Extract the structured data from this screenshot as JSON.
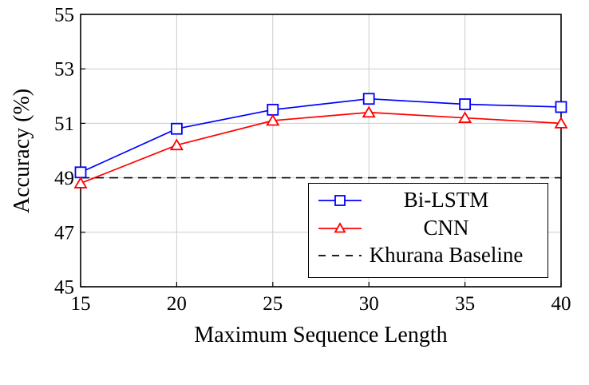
{
  "chart_data": {
    "type": "line",
    "title": "",
    "xlabel": "Maximum Sequence Length",
    "ylabel": "Accuracy (%)",
    "x": [
      15,
      20,
      25,
      30,
      35,
      40
    ],
    "xlim": [
      15,
      40
    ],
    "ylim": [
      45,
      55
    ],
    "x_ticks": [
      15,
      20,
      25,
      30,
      35,
      40
    ],
    "y_ticks": [
      45,
      47,
      49,
      51,
      53,
      55
    ],
    "grid": "on",
    "legend_position": "south east",
    "series": [
      {
        "name": "Bi-LSTM",
        "color": "#0000ff",
        "marker": "square",
        "values": [
          49.2,
          50.8,
          51.5,
          51.9,
          51.7,
          51.6
        ]
      },
      {
        "name": "CNN",
        "color": "#ff0000",
        "marker": "triangle",
        "values": [
          48.8,
          50.2,
          51.1,
          51.4,
          51.2,
          51.0
        ]
      }
    ],
    "baseline": {
      "name": "Khurana Baseline",
      "value": 49.0,
      "color": "#000000",
      "style": "dashed"
    }
  },
  "colors": {
    "grid": "#cccccc",
    "axis": "#000000",
    "background": "#ffffff"
  }
}
